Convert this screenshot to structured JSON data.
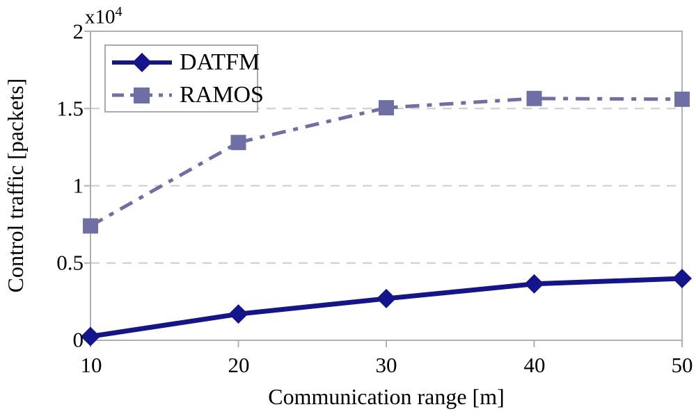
{
  "colors": {
    "axis": "#b0b0b0",
    "grid": "#cccccc",
    "datfm": "#14148C",
    "ramos": "#6F6FA5",
    "background": "#ffffff",
    "text": "#000000"
  },
  "chart_data": {
    "type": "line",
    "title": "",
    "xlabel": "Communication range [m]",
    "ylabel": "Control traffic [packets]",
    "axis_multiplier": {
      "base": "x10",
      "exponent": "4"
    },
    "x": [
      10,
      20,
      30,
      40,
      50
    ],
    "xtick_labels": [
      "10",
      "20",
      "30",
      "40",
      "50"
    ],
    "ytick_labels": [
      "0",
      "0.5",
      "1",
      "1.5",
      "2"
    ],
    "ytick_values": [
      0,
      5000,
      10000,
      15000,
      20000
    ],
    "xlim": [
      10,
      50
    ],
    "ylim": [
      0,
      20000
    ],
    "grid": "horizontal dashed",
    "legend_position": "top-left",
    "series": [
      {
        "name": "DATFM",
        "values": [
          250,
          1700,
          2700,
          3650,
          4000
        ],
        "color": "#14148C",
        "marker": "diamond",
        "line_style": "solid"
      },
      {
        "name": "RAMOS",
        "values": [
          7400,
          12800,
          15050,
          15650,
          15600
        ],
        "color": "#6F6FA5",
        "marker": "square",
        "line_style": "dash-dot"
      }
    ]
  }
}
